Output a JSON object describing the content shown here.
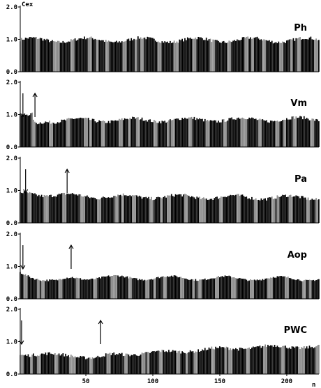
{
  "chart_data": {
    "type": "bar",
    "ylabel": "Cex",
    "xlabel": "n",
    "ylim": [
      0.0,
      2.0
    ],
    "yticks": [
      "0.0",
      "1.0",
      "2.0"
    ],
    "xlim": [
      1,
      224
    ],
    "xticks": [
      50,
      100,
      150,
      200
    ],
    "xtick_labels": [
      "50",
      "100",
      "150",
      "200"
    ],
    "panels": [
      {
        "label": "Ph",
        "profile": [
          [
            1,
            0.98
          ],
          [
            224,
            0.98
          ]
        ],
        "ripple": 0.07,
        "noise": 0.05,
        "arrows": []
      },
      {
        "label": "Vm",
        "profile": [
          [
            1,
            0.92
          ],
          [
            6,
            0.95
          ],
          [
            10,
            0.98
          ],
          [
            12,
            0.72
          ],
          [
            20,
            0.82
          ],
          [
            224,
            0.86
          ]
        ],
        "ripple": 0.06,
        "noise": 0.05,
        "arrows": [
          {
            "n": 3,
            "direction": "down"
          },
          {
            "n": 12,
            "direction": "up"
          }
        ]
      },
      {
        "label": "Pa",
        "profile": [
          [
            1,
            0.9
          ],
          [
            8,
            0.92
          ],
          [
            30,
            0.85
          ],
          [
            60,
            0.82
          ],
          [
            224,
            0.78
          ]
        ],
        "ripple": 0.06,
        "noise": 0.05,
        "arrows": [
          {
            "n": 5,
            "direction": "down"
          },
          {
            "n": 36,
            "direction": "up"
          }
        ]
      },
      {
        "label": "Aop",
        "profile": [
          [
            1,
            0.82
          ],
          [
            6,
            0.76
          ],
          [
            18,
            0.6
          ],
          [
            28,
            0.52
          ],
          [
            40,
            0.65
          ],
          [
            60,
            0.66
          ],
          [
            224,
            0.62
          ]
        ],
        "ripple": 0.06,
        "noise": 0.03,
        "arrows": [
          {
            "n": 3,
            "direction": "down"
          },
          {
            "n": 39,
            "direction": "up"
          }
        ]
      },
      {
        "label": "PWC",
        "profile": [
          [
            1,
            0.62
          ],
          [
            40,
            0.58
          ],
          [
            58,
            0.5
          ],
          [
            70,
            0.6
          ],
          [
            110,
            0.68
          ],
          [
            150,
            0.78
          ],
          [
            190,
            0.85
          ],
          [
            224,
            0.84
          ]
        ],
        "ripple": 0.04,
        "noise": 0.05,
        "arrows": [
          {
            "n": 2,
            "direction": "down"
          },
          {
            "n": 61,
            "direction": "up"
          }
        ]
      }
    ]
  }
}
